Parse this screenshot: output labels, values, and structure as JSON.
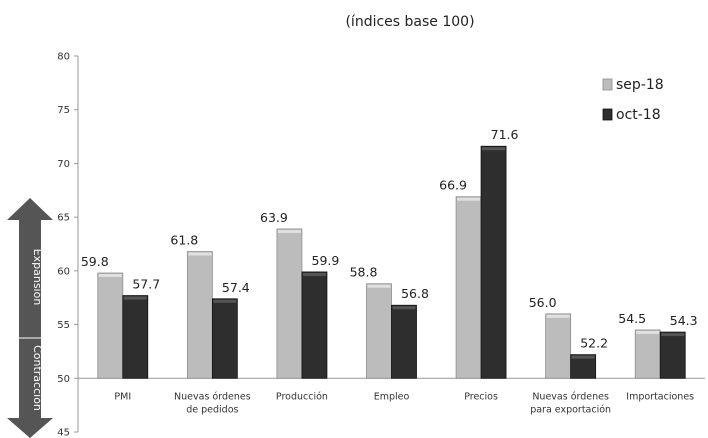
{
  "chart_data": {
    "type": "bar",
    "title": "(índices base 100)",
    "categories": [
      [
        "PMI"
      ],
      [
        "Nuevas órdenes",
        "de pedidos"
      ],
      [
        "Producción"
      ],
      [
        "Empleo"
      ],
      [
        "Precios"
      ],
      [
        "Nuevas órdenes",
        "para exportación"
      ],
      [
        "Importaciones"
      ]
    ],
    "series": [
      {
        "name": "sep-18",
        "values": [
          59.8,
          61.8,
          63.9,
          58.8,
          66.9,
          56.0,
          54.5
        ],
        "labels": [
          "59.8",
          "61.8",
          "63.9",
          "58.8",
          "66.9",
          "56.0",
          "54.5"
        ],
        "color": "#bcbcbc"
      },
      {
        "name": "oct-18",
        "values": [
          57.7,
          57.4,
          59.9,
          56.8,
          71.6,
          52.2,
          54.3
        ],
        "labels": [
          "57.7",
          "57.4",
          "59.9",
          "56.8",
          "71.6",
          "52.2",
          "54.3"
        ],
        "color": "#2e2e2e"
      }
    ],
    "yticks": [
      "45",
      "50",
      "55",
      "60",
      "65",
      "70",
      "75",
      "80"
    ],
    "ylim": [
      45,
      80
    ],
    "baseline": 50,
    "legend_position": "right",
    "side_arrow": {
      "up_label": "Expansión",
      "down_label": "Contracción",
      "color": "#555555"
    }
  }
}
